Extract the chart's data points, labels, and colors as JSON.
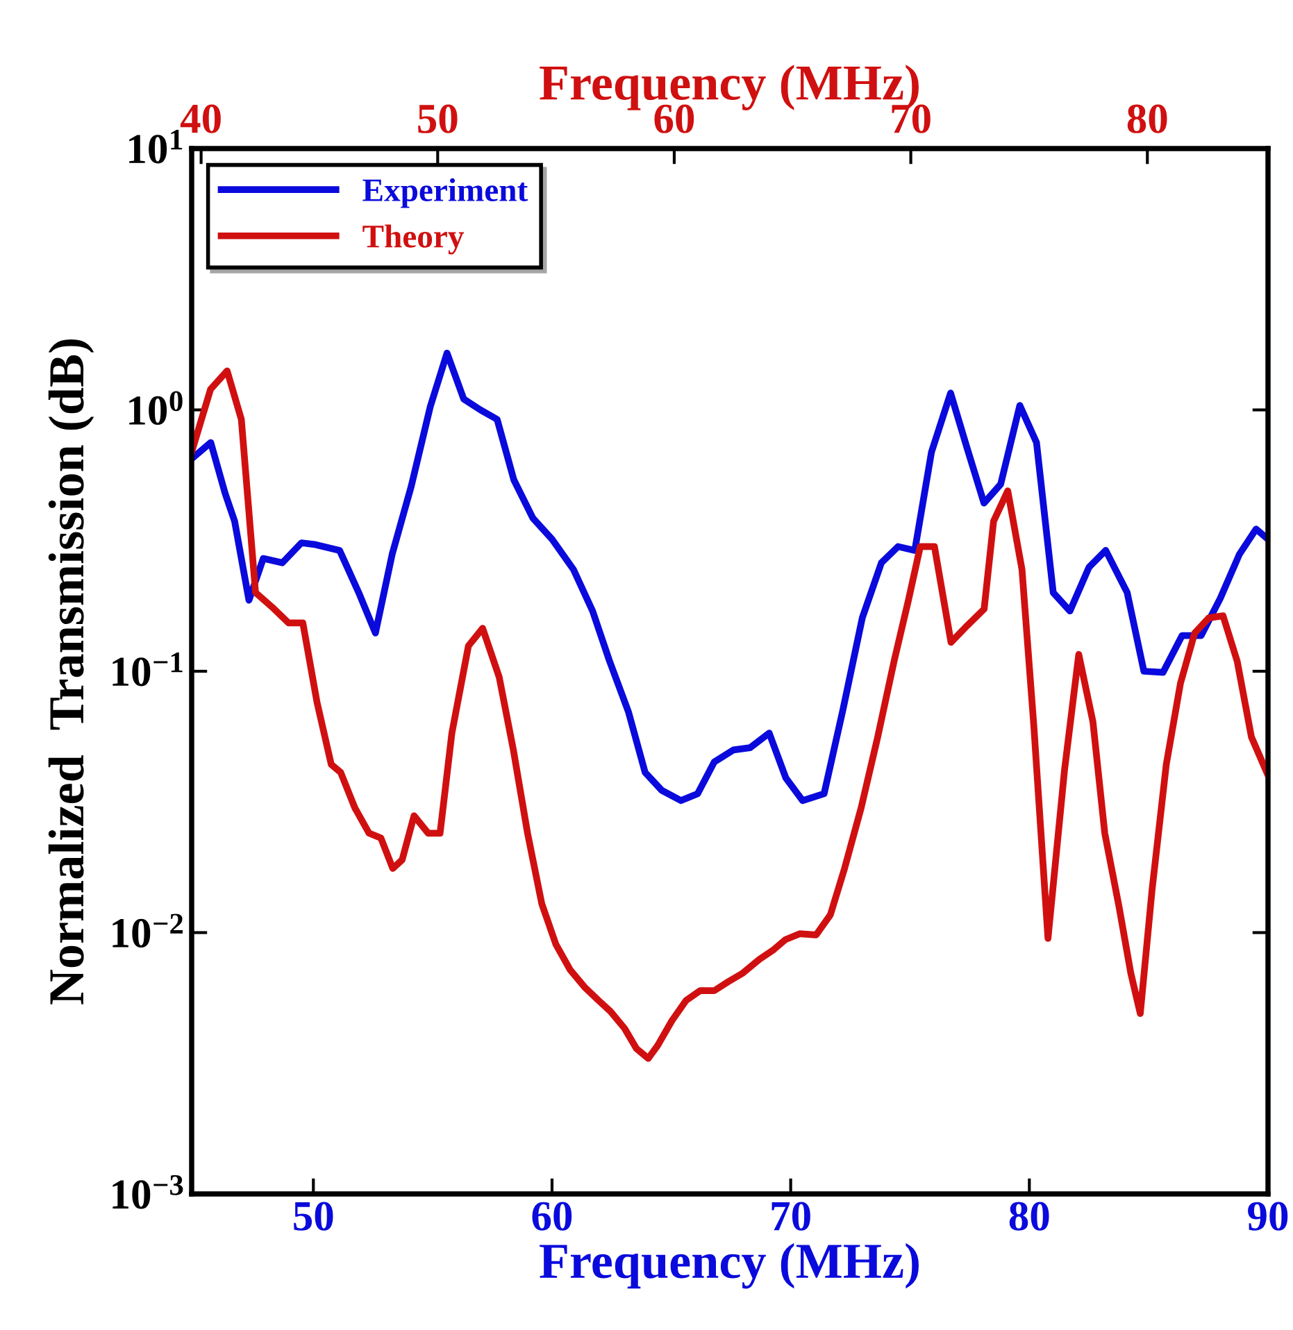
{
  "chart_data": {
    "type": "line",
    "xlabel": "Frequency (MHz)",
    "x2label": "Frequency (MHz)",
    "ylabel": "Normalized  Transmission (dB)",
    "log": "y",
    "legend": "top left",
    "grid": false,
    "xlim": [
      44.9,
      90
    ],
    "xticks": [
      50,
      60,
      70,
      80,
      90
    ],
    "x2lim": [
      39.6,
      85.1
    ],
    "x2ticks": [
      40,
      50,
      60,
      70,
      80
    ],
    "ylim": [
      0.001,
      10
    ],
    "yticks": [
      {
        "value": 0.001,
        "label": "10$^{−3}$"
      },
      {
        "value": 0.01,
        "label": "10$^{−2}$"
      },
      {
        "value": 0.1,
        "label": "10$^{−1}$"
      },
      {
        "value": 1,
        "label": "10$^{0}$"
      },
      {
        "value": 10,
        "label": "10$^{1}$"
      }
    ],
    "series": [
      {
        "name": "Experiment",
        "color": "#0a0adc",
        "x": [
          44.9,
          45.7,
          46.3,
          46.7,
          47.3,
          47.9,
          48.7,
          49.5,
          50.1,
          51.1,
          51.9,
          52.6,
          53.3,
          54.1,
          54.9,
          55.6,
          56.3,
          57.0,
          57.7,
          58.4,
          59.2,
          60.0,
          60.9,
          61.7,
          62.4,
          63.2,
          63.9,
          64.6,
          65.4,
          66.1,
          66.8,
          67.6,
          68.3,
          69.1,
          69.8,
          70.5,
          71.4,
          72.2,
          73.0,
          73.8,
          74.5,
          75.2,
          75.9,
          76.7,
          77.4,
          78.1,
          78.8,
          79.6,
          80.3,
          81.0,
          81.7,
          82.5,
          83.2,
          84.1,
          84.8,
          85.6,
          86.4,
          87.2,
          88.0,
          88.8,
          89.5,
          90.0
        ],
        "values": [
          0.65,
          0.75,
          0.48,
          0.375,
          0.187,
          0.27,
          0.26,
          0.31,
          0.305,
          0.29,
          0.2,
          0.14,
          0.28,
          0.51,
          1.03,
          1.65,
          1.1,
          1.0,
          0.92,
          0.54,
          0.385,
          0.32,
          0.245,
          0.17,
          0.11,
          0.07,
          0.041,
          0.035,
          0.032,
          0.034,
          0.045,
          0.05,
          0.051,
          0.058,
          0.039,
          0.032,
          0.034,
          0.072,
          0.16,
          0.26,
          0.3,
          0.29,
          0.69,
          1.16,
          0.71,
          0.44,
          0.52,
          1.04,
          0.75,
          0.2,
          0.17,
          0.25,
          0.29,
          0.2,
          0.1,
          0.099,
          0.137,
          0.137,
          0.19,
          0.28,
          0.35,
          0.32
        ]
      },
      {
        "name": "Theory",
        "color": "#d01010",
        "axis": "x2",
        "x": [
          39.6,
          40.4,
          41.1,
          41.7,
          42.3,
          43.0,
          43.7,
          44.3,
          44.9,
          45.5,
          45.9,
          46.5,
          47.1,
          47.6,
          48.1,
          48.5,
          49.0,
          49.6,
          50.1,
          50.6,
          51.3,
          51.9,
          52.6,
          53.2,
          53.8,
          54.4,
          55.0,
          55.6,
          56.2,
          56.8,
          57.3,
          57.9,
          58.4,
          58.9,
          59.3,
          59.9,
          60.5,
          61.1,
          61.7,
          62.3,
          62.9,
          63.6,
          64.2,
          64.7,
          65.3,
          66.0,
          66.6,
          67.2,
          67.9,
          68.6,
          69.3,
          69.9,
          70.4,
          71.0,
          71.7,
          72.4,
          73.1,
          73.5,
          74.1,
          74.7,
          75.2,
          75.8,
          76.5,
          77.1,
          77.7,
          78.2,
          78.8,
          79.3,
          79.7,
          80.2,
          80.8,
          81.4,
          82.0,
          82.6,
          83.2,
          83.8,
          84.4,
          85.1
        ],
        "values": [
          0.69,
          1.2,
          1.41,
          0.92,
          0.2,
          0.176,
          0.153,
          0.153,
          0.076,
          0.044,
          0.041,
          0.03,
          0.024,
          0.023,
          0.0176,
          0.019,
          0.028,
          0.024,
          0.024,
          0.058,
          0.125,
          0.146,
          0.095,
          0.05,
          0.024,
          0.0129,
          0.009,
          0.0072,
          0.0062,
          0.0055,
          0.005,
          0.0043,
          0.0036,
          0.0033,
          0.0037,
          0.0046,
          0.0055,
          0.006,
          0.006,
          0.0065,
          0.007,
          0.0079,
          0.0086,
          0.0094,
          0.0099,
          0.0098,
          0.0117,
          0.0176,
          0.03,
          0.056,
          0.11,
          0.187,
          0.3,
          0.3,
          0.129,
          0.15,
          0.173,
          0.375,
          0.49,
          0.245,
          0.062,
          0.0095,
          0.042,
          0.116,
          0.064,
          0.024,
          0.0126,
          0.007,
          0.0049,
          0.0146,
          0.044,
          0.09,
          0.14,
          0.16,
          0.163,
          0.109,
          0.056,
          0.04
        ]
      }
    ]
  }
}
